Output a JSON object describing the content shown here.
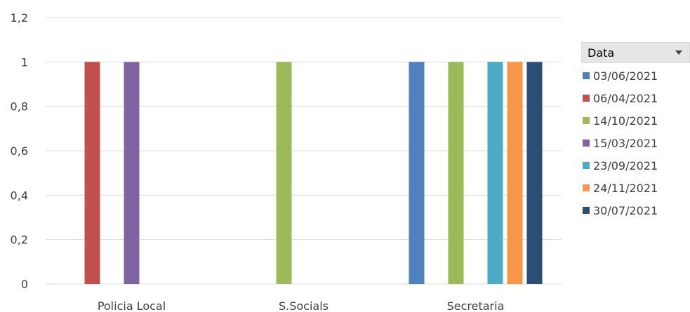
{
  "chart_data": {
    "type": "bar",
    "categories": [
      "Policia Local",
      "S.Socials",
      "Secretaria"
    ],
    "y_ticks": [
      "0",
      "0,2",
      "0,4",
      "0,6",
      "0,8",
      "1",
      "1,2"
    ],
    "ylim": [
      0,
      1.2
    ],
    "grid": true,
    "legend_position": "right",
    "legend_title": "Data",
    "series": [
      {
        "name": "03/06/2021",
        "color": "#4f81bd",
        "values": [
          null,
          null,
          1
        ]
      },
      {
        "name": "06/04/2021",
        "color": "#c0504d",
        "values": [
          1,
          null,
          null
        ]
      },
      {
        "name": "14/10/2021",
        "color": "#9bbb59",
        "values": [
          null,
          1,
          1
        ]
      },
      {
        "name": "15/03/2021",
        "color": "#8064a2",
        "values": [
          1,
          null,
          null
        ]
      },
      {
        "name": "23/09/2021",
        "color": "#4bacc6",
        "values": [
          null,
          null,
          1
        ]
      },
      {
        "name": "24/11/2021",
        "color": "#f79646",
        "values": [
          null,
          null,
          1
        ]
      },
      {
        "name": "30/07/2021",
        "color": "#2c4d75",
        "values": [
          null,
          null,
          1
        ]
      }
    ]
  }
}
